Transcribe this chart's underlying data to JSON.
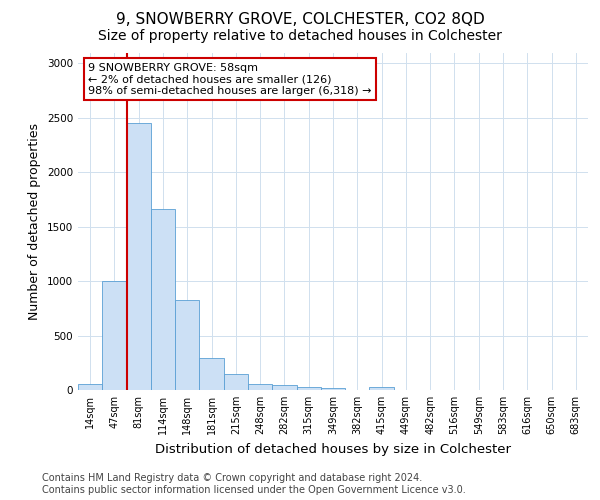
{
  "title": "9, SNOWBERRY GROVE, COLCHESTER, CO2 8QD",
  "subtitle": "Size of property relative to detached houses in Colchester",
  "xlabel": "Distribution of detached houses by size in Colchester",
  "ylabel": "Number of detached properties",
  "categories": [
    "14sqm",
    "47sqm",
    "81sqm",
    "114sqm",
    "148sqm",
    "181sqm",
    "215sqm",
    "248sqm",
    "282sqm",
    "315sqm",
    "349sqm",
    "382sqm",
    "415sqm",
    "449sqm",
    "482sqm",
    "516sqm",
    "549sqm",
    "583sqm",
    "616sqm",
    "650sqm",
    "683sqm"
  ],
  "values": [
    55,
    1000,
    2450,
    1660,
    830,
    290,
    150,
    55,
    45,
    30,
    20,
    0,
    25,
    0,
    0,
    0,
    0,
    0,
    0,
    0,
    0
  ],
  "bar_color": "#cce0f5",
  "bar_edge_color": "#5a9fd4",
  "vline_x": 1.5,
  "annotation_line1": "9 SNOWBERRY GROVE: 58sqm",
  "annotation_line2": "← 2% of detached houses are smaller (126)",
  "annotation_line3": "98% of semi-detached houses are larger (6,318) →",
  "annotation_box_color": "#ffffff",
  "annotation_box_edge_color": "#cc0000",
  "vline_color": "#cc0000",
  "ylim": [
    0,
    3100
  ],
  "yticks": [
    0,
    500,
    1000,
    1500,
    2000,
    2500,
    3000
  ],
  "footer_line1": "Contains HM Land Registry data © Crown copyright and database right 2024.",
  "footer_line2": "Contains public sector information licensed under the Open Government Licence v3.0.",
  "background_color": "#ffffff",
  "grid_color": "#d0e0ee",
  "title_fontsize": 11,
  "subtitle_fontsize": 10,
  "tick_fontsize": 7,
  "ylabel_fontsize": 9,
  "xlabel_fontsize": 9.5,
  "footer_fontsize": 7,
  "annot_fontsize": 8
}
